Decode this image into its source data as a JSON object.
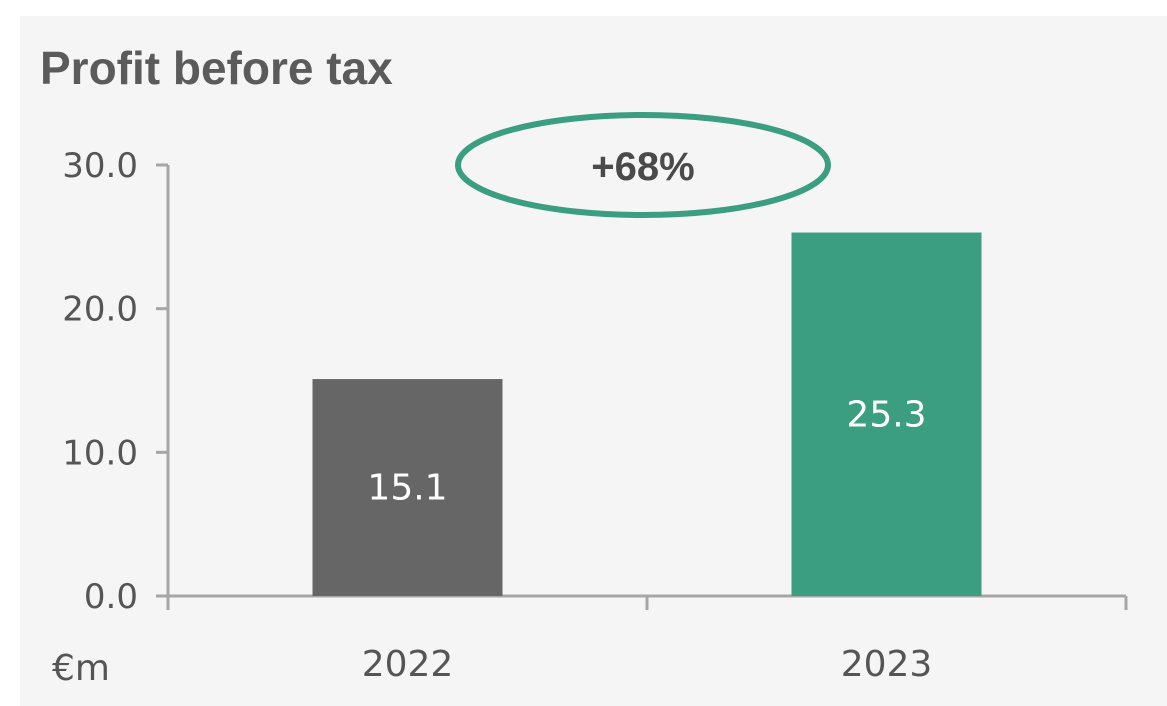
{
  "chart_data": {
    "type": "bar",
    "title": "Profit before tax",
    "unit_label": "€m",
    "categories": [
      "2022",
      "2023"
    ],
    "values": [
      15.1,
      25.3
    ],
    "data_labels": [
      "15.1",
      "25.3"
    ],
    "bar_colors": [
      "#666666",
      "#3c9e80"
    ],
    "ylim": [
      0,
      30
    ],
    "y_ticks": [
      0,
      10,
      20,
      30
    ],
    "y_tick_labels": [
      "0.0",
      "10.0",
      "20.0",
      "30.0"
    ],
    "grid": false,
    "annotation": {
      "text": "+68%",
      "shape": "ellipse",
      "color": "#3c9e80"
    }
  }
}
